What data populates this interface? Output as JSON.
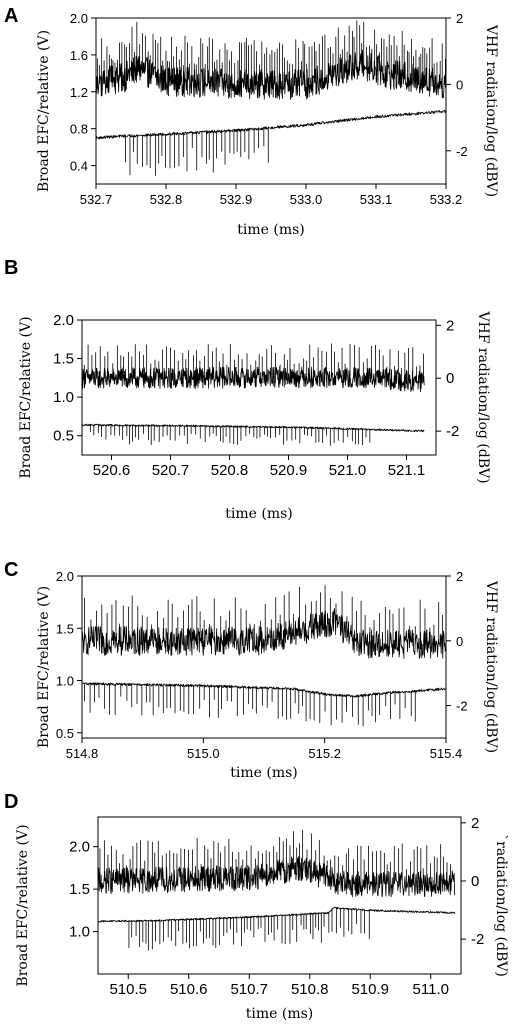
{
  "figure": {
    "panel_count": 4
  },
  "chart_data": [
    {
      "type": "line",
      "panel_label": "A",
      "x_axis_title": "time (ms)",
      "left_axis_title": "Broad EFC/relative (V)",
      "right_axis_title": "VHF radiation/log (dBV)",
      "xlim": [
        532.7,
        533.2
      ],
      "left_ylim": [
        0.2,
        2.0
      ],
      "right_ylim": [
        -3,
        2
      ],
      "x_ticks": [
        532.7,
        532.8,
        532.9,
        533.0,
        533.1,
        533.2
      ],
      "x_tick_labels": [
        "532.7",
        "532.8",
        "532.9",
        "533.0",
        "533.1",
        "533.2"
      ],
      "left_ticks": [
        0.4,
        0.8,
        1.2,
        1.6,
        2.0
      ],
      "left_tick_labels": [
        "0.4",
        "0.8",
        "1.2",
        "1.6",
        "2.0"
      ],
      "right_ticks": [
        2,
        0,
        -2
      ],
      "right_tick_labels": [
        "2",
        "0",
        "-2"
      ],
      "series": [
        {
          "axis": "right",
          "x_range": [
            532.7,
            533.22
          ],
          "base": [
            [
              532.7,
              0.0
            ],
            [
              532.74,
              0.2
            ],
            [
              532.76,
              0.5
            ],
            [
              532.8,
              0.1
            ],
            [
              532.9,
              0.0
            ],
            [
              533.0,
              0.0
            ],
            [
              533.08,
              0.6
            ],
            [
              533.12,
              0.3
            ],
            [
              533.2,
              0.0
            ]
          ],
          "noise": 0.45,
          "burst_interval": 0.0035,
          "burst_amp": 1.4,
          "burst_dir": "up"
        },
        {
          "axis": "left",
          "x_range": [
            532.7,
            533.22
          ],
          "base": [
            [
              532.7,
              0.7
            ],
            [
              532.74,
              0.72
            ],
            [
              532.8,
              0.74
            ],
            [
              532.9,
              0.78
            ],
            [
              533.0,
              0.84
            ],
            [
              533.1,
              0.93
            ],
            [
              533.22,
              1.0
            ]
          ],
          "noise": 0.015,
          "burst_interval": 0.006,
          "burst_amp": 0.45,
          "burst_dir": "down",
          "burst_range": [
            532.74,
            532.95
          ]
        }
      ]
    },
    {
      "type": "line",
      "panel_label": "B",
      "x_axis_title": "time (ms)",
      "left_axis_title": "Broad EFC/relative (V)",
      "right_axis_title": "VHF radiation/log (dBV)",
      "xlim": [
        520.55,
        521.15
      ],
      "left_ylim": [
        0.25,
        2.0
      ],
      "right_ylim": [
        -2.9,
        2.2
      ],
      "x_ticks": [
        520.6,
        520.7,
        520.8,
        520.9,
        521.0,
        521.1
      ],
      "x_tick_labels": [
        "520.6",
        "520.7",
        "520.8",
        "520.9",
        "521.0",
        "521.1"
      ],
      "left_ticks": [
        0.5,
        1.0,
        1.5,
        2.0
      ],
      "left_tick_labels": [
        "0.5",
        "1.0",
        "1.5",
        "2.0"
      ],
      "right_ticks": [
        2,
        0,
        -2
      ],
      "right_tick_labels": [
        "2",
        "0",
        "-2"
      ],
      "series": [
        {
          "axis": "right",
          "x_range": [
            520.55,
            521.13
          ],
          "base": [
            [
              520.55,
              0.0
            ],
            [
              520.7,
              0.0
            ],
            [
              520.9,
              0.05
            ],
            [
              521.05,
              0.0
            ],
            [
              521.13,
              -0.15
            ]
          ],
          "noise": 0.4,
          "burst_interval": 0.0065,
          "burst_amp": 1.3,
          "burst_dir": "up"
        },
        {
          "axis": "left",
          "x_range": [
            520.55,
            521.13
          ],
          "base": [
            [
              520.55,
              0.64
            ],
            [
              520.7,
              0.63
            ],
            [
              520.9,
              0.61
            ],
            [
              521.0,
              0.59
            ],
            [
              521.13,
              0.56
            ]
          ],
          "noise": 0.012,
          "burst_interval": 0.0065,
          "burst_amp": 0.25,
          "burst_dir": "down",
          "burst_range": [
            520.56,
            521.04
          ]
        }
      ]
    },
    {
      "type": "line",
      "panel_label": "C",
      "x_axis_title": "time (ms)",
      "left_axis_title": "Broad EFC/relative (V)",
      "right_axis_title": "VHF radiation/log (dBV)",
      "xlim": [
        514.8,
        515.4
      ],
      "left_ylim": [
        0.45,
        2.0
      ],
      "right_ylim": [
        -3,
        2
      ],
      "x_ticks": [
        514.8,
        515.0,
        515.2,
        515.4
      ],
      "x_tick_labels": [
        "514.8",
        "515.0",
        "515.2",
        "515.4"
      ],
      "left_ticks": [
        0.5,
        1.0,
        1.5,
        2.0
      ],
      "left_tick_labels": [
        "0.5",
        "1.0",
        "1.5",
        "2.0"
      ],
      "right_ticks": [
        2,
        0,
        -2
      ],
      "right_tick_labels": [
        "2",
        "0",
        "-2"
      ],
      "series": [
        {
          "axis": "right",
          "x_range": [
            514.8,
            515.4
          ],
          "base": [
            [
              514.8,
              0.0
            ],
            [
              515.1,
              0.0
            ],
            [
              515.18,
              0.4
            ],
            [
              515.22,
              0.6
            ],
            [
              515.25,
              -0.1
            ],
            [
              515.4,
              -0.1
            ]
          ],
          "noise": 0.45,
          "burst_interval": 0.008,
          "burst_amp": 1.4,
          "burst_dir": "up"
        },
        {
          "axis": "left",
          "x_range": [
            514.8,
            515.4
          ],
          "base": [
            [
              514.8,
              0.97
            ],
            [
              515.0,
              0.95
            ],
            [
              515.15,
              0.92
            ],
            [
              515.2,
              0.87
            ],
            [
              515.25,
              0.85
            ],
            [
              515.3,
              0.88
            ],
            [
              515.4,
              0.92
            ]
          ],
          "noise": 0.012,
          "burst_interval": 0.008,
          "burst_amp": 0.3,
          "burst_dir": "down",
          "burst_range": [
            514.8,
            515.35
          ]
        }
      ]
    },
    {
      "type": "line",
      "panel_label": "D",
      "x_axis_title": "time (ms)",
      "left_axis_title": "Broad EFC/relative (V)",
      "right_axis_title": "`radiation/log (dBV)",
      "xlim": [
        510.45,
        511.05
      ],
      "left_ylim": [
        0.5,
        2.35
      ],
      "right_ylim": [
        -3.2,
        2.2
      ],
      "x_ticks": [
        510.5,
        510.6,
        510.7,
        510.8,
        510.9,
        511.0
      ],
      "x_tick_labels": [
        "510.5",
        "510.6",
        "510.7",
        "510.8",
        "510.9",
        "511.0"
      ],
      "left_ticks": [
        1.0,
        1.5,
        2.0
      ],
      "left_tick_labels": [
        "1.0",
        "1.5",
        "2.0"
      ],
      "right_ticks": [
        2,
        0,
        -2
      ],
      "right_tick_labels": [
        "2",
        "0",
        "-2"
      ],
      "series": [
        {
          "axis": "right",
          "x_range": [
            510.45,
            511.04
          ],
          "base": [
            [
              510.45,
              0.0
            ],
            [
              510.7,
              0.1
            ],
            [
              510.78,
              0.45
            ],
            [
              510.82,
              0.2
            ],
            [
              510.85,
              -0.1
            ],
            [
              511.04,
              -0.1
            ]
          ],
          "noise": 0.45,
          "burst_interval": 0.006,
          "burst_amp": 1.4,
          "burst_dir": "up"
        },
        {
          "axis": "left",
          "x_range": [
            510.45,
            511.04
          ],
          "base": [
            [
              510.45,
              1.12
            ],
            [
              510.55,
              1.13
            ],
            [
              510.7,
              1.17
            ],
            [
              510.83,
              1.22
            ],
            [
              510.84,
              1.28
            ],
            [
              510.9,
              1.25
            ],
            [
              511.04,
              1.22
            ]
          ],
          "noise": 0.01,
          "burst_interval": 0.006,
          "burst_amp": 0.35,
          "burst_dir": "down",
          "burst_range": [
            510.5,
            510.9
          ]
        }
      ]
    }
  ]
}
